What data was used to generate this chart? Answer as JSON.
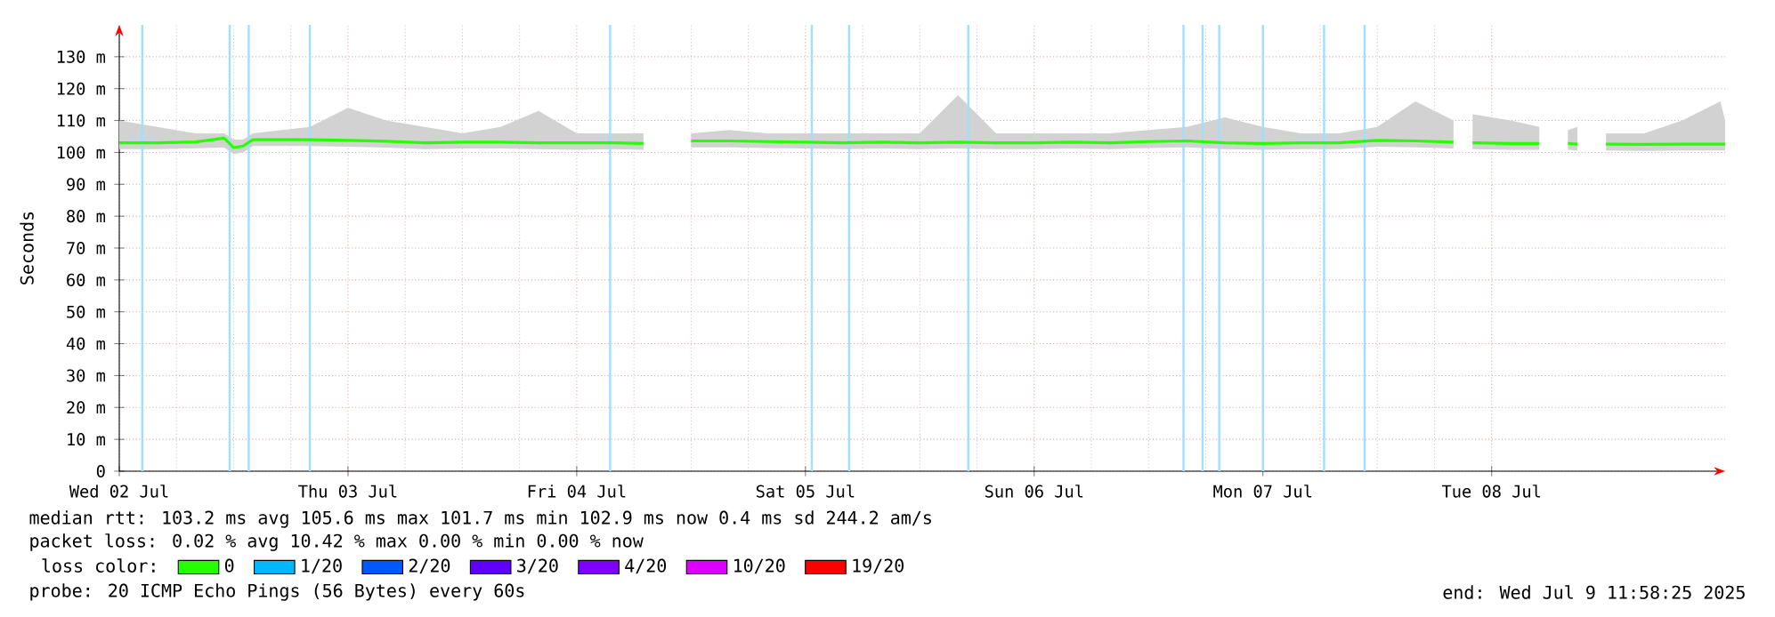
{
  "chart_data": {
    "type": "line",
    "ylabel": "Seconds",
    "legend": "bottom",
    "legend_title": "loss color:",
    "grid": true,
    "line_style": "solid",
    "xlim": [
      "2025-07-02T00:00",
      "2025-07-09T00:30"
    ],
    "xticks": [
      {
        "value": "2025-07-02T00:00",
        "label": "Wed 02 Jul"
      },
      {
        "value": "2025-07-03T00:00",
        "label": "Thu 03 Jul"
      },
      {
        "value": "2025-07-04T00:00",
        "label": "Fri 04 Jul"
      },
      {
        "value": "2025-07-05T00:00",
        "label": "Sat 05 Jul"
      },
      {
        "value": "2025-07-06T00:00",
        "label": "Sun 06 Jul"
      },
      {
        "value": "2025-07-07T00:00",
        "label": "Mon 07 Jul"
      },
      {
        "value": "2025-07-08T00:00",
        "label": "Tue 08 Jul"
      }
    ],
    "ylim": [
      0,
      140
    ],
    "yticks": [
      0,
      {
        "value": 10,
        "label": "10 m"
      },
      {
        "value": 20,
        "label": "20 m"
      },
      {
        "value": 30,
        "label": "30 m"
      },
      {
        "value": 40,
        "label": "40 m"
      },
      {
        "value": 50,
        "label": "50 m"
      },
      {
        "value": 60,
        "label": "60 m"
      },
      {
        "value": 70,
        "label": "70 m"
      },
      {
        "value": 80,
        "label": "80 m"
      },
      {
        "value": 90,
        "label": "90 m"
      },
      {
        "value": 100,
        "label": "100 m"
      },
      {
        "value": 110,
        "label": "110 m"
      },
      {
        "value": 120,
        "label": "120 m"
      },
      {
        "value": 130,
        "label": "130 m"
      }
    ],
    "x": [
      "2025-07-02T00:00",
      "2025-07-02T04:00",
      "2025-07-02T08:00",
      "2025-07-02T11:00",
      "2025-07-02T12:00",
      "2025-07-02T13:00",
      "2025-07-02T14:00",
      "2025-07-02T20:00",
      "2025-07-03T00:00",
      "2025-07-03T04:00",
      "2025-07-03T08:00",
      "2025-07-03T12:00",
      "2025-07-03T16:00",
      "2025-07-03T20:00",
      "2025-07-04T00:00",
      "2025-07-04T04:00",
      "2025-07-04T07:00",
      "2025-07-04T09:00",
      "2025-07-04T12:00",
      "2025-07-04T16:00",
      "2025-07-04T20:00",
      "2025-07-05T00:00",
      "2025-07-05T04:00",
      "2025-07-05T08:00",
      "2025-07-05T12:00",
      "2025-07-05T16:00",
      "2025-07-05T20:00",
      "2025-07-06T00:00",
      "2025-07-06T04:00",
      "2025-07-06T08:00",
      "2025-07-06T12:00",
      "2025-07-06T16:00",
      "2025-07-06T20:00",
      "2025-07-07T00:00",
      "2025-07-07T04:00",
      "2025-07-07T08:00",
      "2025-07-07T12:00",
      "2025-07-07T16:00",
      "2025-07-07T20:00",
      "2025-07-07T21:00",
      "2025-07-07T22:00",
      "2025-07-08T02:00",
      "2025-07-08T05:00",
      "2025-07-08T06:00",
      "2025-07-08T08:00",
      "2025-07-08T09:00",
      "2025-07-08T10:30",
      "2025-07-08T12:00",
      "2025-07-08T16:00",
      "2025-07-08T20:00",
      "2025-07-09T00:00",
      "2025-07-09T00:30"
    ],
    "series": [
      {
        "name": "0",
        "color": "#26ff00",
        "values": [
          103.0,
          103.0,
          103.3,
          104.5,
          101.5,
          102.0,
          104.0,
          104.0,
          103.8,
          103.5,
          103.0,
          103.2,
          103.2,
          103.0,
          103.0,
          103.0,
          102.8,
          null,
          103.6,
          103.6,
          103.4,
          103.2,
          103.0,
          103.2,
          103.0,
          103.2,
          103.0,
          103.0,
          103.2,
          103.0,
          103.4,
          103.6,
          103.0,
          102.8,
          103.0,
          103.0,
          103.8,
          103.6,
          103.2,
          null,
          103.0,
          102.8,
          102.8,
          null,
          102.8,
          102.6,
          null,
          102.6,
          102.5,
          102.6,
          102.6,
          102.6
        ],
        "lower": [
          101.0,
          101.0,
          101.3,
          101.5,
          99.5,
          100.0,
          102.0,
          102.0,
          101.8,
          101.5,
          101.0,
          101.2,
          101.2,
          101.0,
          100.8,
          101.0,
          100.8,
          null,
          101.6,
          101.6,
          101.4,
          101.2,
          101.0,
          101.2,
          101.0,
          101.2,
          101.0,
          101.0,
          101.2,
          101.0,
          101.4,
          101.6,
          101.0,
          100.8,
          101.0,
          101.0,
          101.8,
          101.6,
          101.2,
          null,
          101.0,
          100.8,
          100.8,
          null,
          100.8,
          100.6,
          null,
          100.6,
          100.5,
          100.6,
          100.6,
          100.6
        ],
        "upper": [
          110,
          108,
          106,
          106,
          104,
          104,
          106,
          108,
          114,
          110,
          108,
          106,
          108,
          113,
          106,
          106,
          106,
          null,
          106,
          107,
          106,
          106,
          106,
          106,
          106,
          118,
          106,
          106,
          106,
          106,
          107,
          108,
          111,
          108,
          106,
          106,
          108,
          116,
          110,
          null,
          112,
          110,
          108,
          null,
          107,
          108,
          null,
          106,
          106,
          110,
          116,
          110
        ]
      },
      {
        "name": "1/20",
        "color": "#00b8ff",
        "values": [
          null,
          null,
          null,
          null,
          null,
          null,
          null,
          null,
          null,
          null,
          null,
          null,
          null,
          null,
          null,
          null,
          null,
          null,
          null,
          null,
          null,
          null,
          null,
          null,
          null,
          null,
          null,
          null,
          null,
          null,
          null,
          null,
          null,
          null,
          null,
          null,
          null,
          null,
          null,
          null,
          null,
          null,
          null,
          null,
          null,
          null,
          null,
          null,
          null,
          null,
          null,
          null
        ]
      },
      {
        "name": "2/20",
        "color": "#0059ff",
        "values": [
          null,
          null,
          null,
          null,
          null,
          null,
          null,
          null,
          null,
          null,
          null,
          null,
          null,
          null,
          null,
          null,
          null,
          null,
          null,
          null,
          null,
          null,
          null,
          null,
          null,
          null,
          null,
          null,
          null,
          null,
          null,
          null,
          null,
          null,
          null,
          null,
          null,
          null,
          null,
          null,
          null,
          null,
          null,
          null,
          null,
          null,
          null,
          null,
          null,
          null,
          null,
          null
        ]
      },
      {
        "name": "3/20",
        "color": "#5e00ff",
        "values": [
          null,
          null,
          null,
          null,
          null,
          null,
          null,
          null,
          null,
          null,
          null,
          null,
          null,
          null,
          null,
          null,
          null,
          null,
          null,
          null,
          null,
          null,
          null,
          null,
          null,
          null,
          null,
          null,
          null,
          null,
          null,
          null,
          null,
          null,
          null,
          null,
          null,
          null,
          null,
          null,
          null,
          null,
          null,
          null,
          null,
          null,
          null,
          null,
          null,
          null,
          null,
          null
        ]
      },
      {
        "name": "4/20",
        "color": "#7e00ff",
        "values": [
          null,
          null,
          null,
          null,
          null,
          null,
          null,
          null,
          null,
          null,
          null,
          null,
          null,
          null,
          null,
          null,
          null,
          null,
          null,
          null,
          null,
          null,
          null,
          null,
          null,
          null,
          null,
          null,
          null,
          null,
          null,
          null,
          null,
          null,
          null,
          null,
          null,
          null,
          null,
          null,
          null,
          null,
          null,
          null,
          null,
          null,
          null,
          null,
          null,
          null,
          null,
          null
        ]
      },
      {
        "name": "10/20",
        "color": "#dd00ff",
        "values": [
          null,
          null,
          null,
          null,
          null,
          null,
          null,
          null,
          null,
          null,
          null,
          null,
          null,
          null,
          null,
          null,
          null,
          null,
          null,
          null,
          null,
          null,
          null,
          null,
          null,
          null,
          null,
          null,
          null,
          null,
          null,
          null,
          null,
          null,
          null,
          null,
          null,
          null,
          null,
          null,
          null,
          null,
          null,
          null,
          null,
          null,
          null,
          null,
          null,
          null,
          null,
          null
        ]
      },
      {
        "name": "19/20",
        "color": "#ff0000",
        "values": [
          null,
          null,
          null,
          null,
          null,
          null,
          null,
          null,
          null,
          null,
          null,
          null,
          null,
          null,
          null,
          null,
          null,
          null,
          null,
          null,
          null,
          null,
          null,
          null,
          null,
          null,
          null,
          null,
          null,
          null,
          null,
          null,
          null,
          null,
          null,
          null,
          null,
          null,
          null,
          null,
          null,
          null,
          null,
          null,
          null,
          null,
          null,
          null,
          null,
          null,
          null,
          null
        ]
      }
    ],
    "ref_lines": [
      {
        "axis": "x",
        "value": "2025-07-02T02:25",
        "color": "#9fdfff"
      },
      {
        "axis": "x",
        "value": "2025-07-02T11:35",
        "color": "#9fdfff"
      },
      {
        "axis": "x",
        "value": "2025-07-02T13:35",
        "color": "#9fdfff"
      },
      {
        "axis": "x",
        "value": "2025-07-02T20:00",
        "color": "#9fdfff"
      },
      {
        "axis": "x",
        "value": "2025-07-04T03:30",
        "color": "#9fdfff"
      },
      {
        "axis": "x",
        "value": "2025-07-05T00:40",
        "color": "#9fdfff"
      },
      {
        "axis": "x",
        "value": "2025-07-05T04:35",
        "color": "#9fdfff"
      },
      {
        "axis": "x",
        "value": "2025-07-05T17:05",
        "color": "#9fdfff"
      },
      {
        "axis": "x",
        "value": "2025-07-06T15:40",
        "color": "#9fdfff"
      },
      {
        "axis": "x",
        "value": "2025-07-06T17:40",
        "color": "#9fdfff"
      },
      {
        "axis": "x",
        "value": "2025-07-06T19:25",
        "color": "#9fdfff"
      },
      {
        "axis": "x",
        "value": "2025-07-07T00:00",
        "color": "#9fdfff"
      },
      {
        "axis": "x",
        "value": "2025-07-07T06:25",
        "color": "#9fdfff"
      },
      {
        "axis": "x",
        "value": "2025-07-07T10:40",
        "color": "#9fdfff"
      }
    ],
    "annotations": [
      "median rtt:  103.2 ms avg  105.6 ms max  101.7 ms min  102.9 ms now  0.4 ms sd  244.2   am/s",
      "packet loss: 0.02 % avg  10.42 % max  0.00 % min  0.00 % now",
      "probe:       20 ICMP Echo Pings (56 Bytes) every 60s",
      "end: Wed Jul  9 11:58:25 2025"
    ]
  }
}
